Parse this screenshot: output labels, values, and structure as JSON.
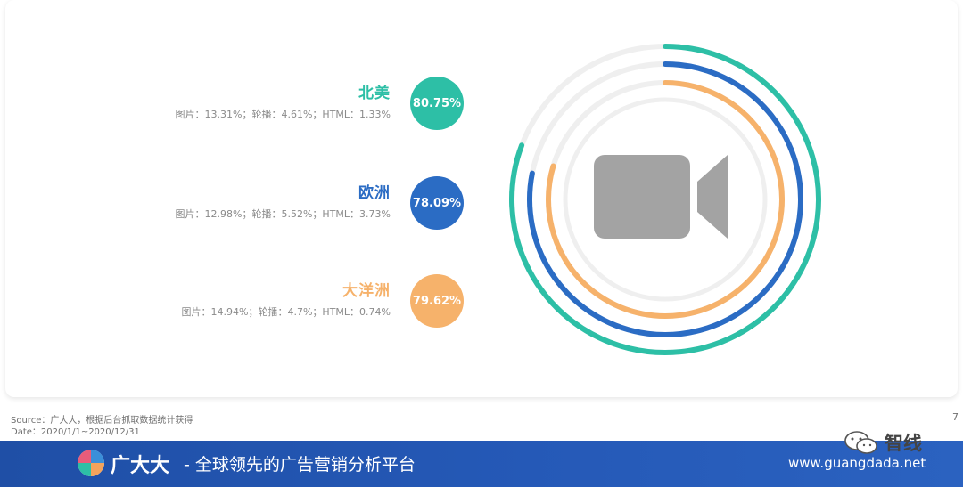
{
  "regions": [
    {
      "name": "北美",
      "value_label": "80.75%",
      "detail": "图片：13.31%；轮播：4.61%；HTML：1.33%",
      "color": "#2dbfa6"
    },
    {
      "name": "欧洲",
      "value_label": "78.09%",
      "detail": "图片：12.98%；轮播：5.52%；HTML：3.73%",
      "color": "#2b6cc4"
    },
    {
      "name": "大洋洲",
      "value_label": "79.62%",
      "detail": "图片：14.94%；轮播：4.7%；HTML：0.74%",
      "color": "#f6b26b"
    }
  ],
  "chart_data": {
    "type": "radial-bar",
    "categories": [
      "北美",
      "欧洲",
      "大洋洲"
    ],
    "values": [
      80.75,
      78.09,
      79.62
    ],
    "unit": "%",
    "max": 100,
    "colors": [
      "#2dbfa6",
      "#2b6cc4",
      "#f6b26b"
    ],
    "track_color": "#efefef",
    "breakdown": [
      {
        "region": "北美",
        "图片": 13.31,
        "轮播": 4.61,
        "HTML": 1.33
      },
      {
        "region": "欧洲",
        "图片": 12.98,
        "轮播": 5.52,
        "HTML": 3.73
      },
      {
        "region": "大洋洲",
        "图片": 14.94,
        "轮播": 4.7,
        "HTML": 0.74
      }
    ],
    "center_icon": "video-camera-icon",
    "icon_color": "#a3a3a3"
  },
  "source": "Source：广大大，根据后台抓取数据统计获得",
  "date": "Date：2020/1/1~2020/12/31",
  "page_number": "7",
  "footer": {
    "brand": "广大大",
    "slogan": "- 全球领先的广告营销分析平台",
    "url": "www.guangdada.net"
  },
  "watermark": {
    "label": "智线",
    "icon": "wechat-icon"
  }
}
